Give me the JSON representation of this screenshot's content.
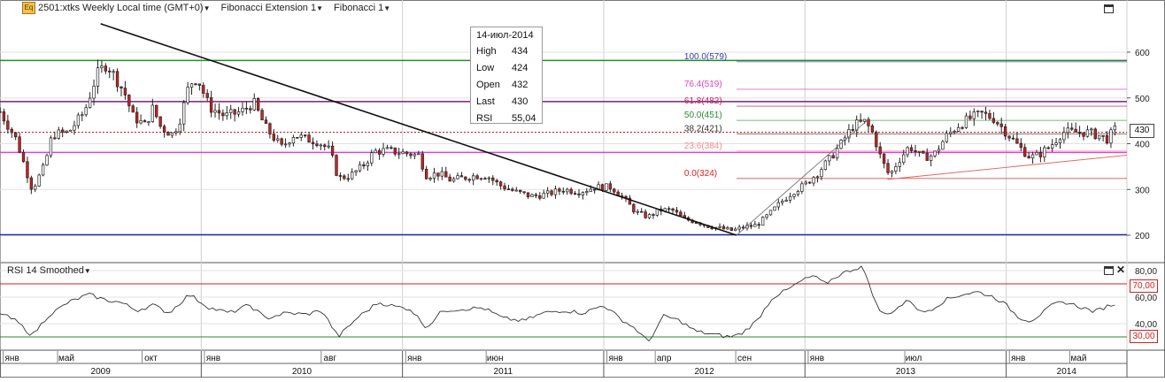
{
  "header": {
    "instrument_label": "2501:xtks Weekly Local time (GMT+0)",
    "fib_ext_label": "Fibonacci Extension 1",
    "fib_label": "Fibonacci 1",
    "logo_text": "Eq"
  },
  "tooltip": {
    "date": "14-июл-2014",
    "rows": [
      {
        "k": "High",
        "v": "434"
      },
      {
        "k": "Low",
        "v": "424"
      },
      {
        "k": "Open",
        "v": "432"
      },
      {
        "k": "Last",
        "v": "430"
      },
      {
        "k": "RSI",
        "v": "55,04"
      }
    ]
  },
  "price_tag": "430",
  "rsi_header": "RSI 14 Smoothed",
  "rsi_tags": {
    "upper": "70,00",
    "lower": "30,00"
  },
  "chart_data": {
    "type": "candlestick",
    "price_axis": {
      "min": 180,
      "max": 650,
      "ticks": [
        200,
        300,
        400,
        500,
        600
      ]
    },
    "rsi_axis": {
      "min": 20,
      "max": 85,
      "ticks": [
        "40,00",
        "60,00",
        "80,00"
      ],
      "tick_values": [
        40,
        60,
        80
      ]
    },
    "time_axis": {
      "months": [
        {
          "label": "янв",
          "t": 0.06
        },
        {
          "label": "май",
          "t": 0.33
        },
        {
          "label": "окт",
          "t": 0.75
        },
        {
          "label": "янв",
          "t": 1.06
        },
        {
          "label": "авг",
          "t": 1.64
        },
        {
          "label": "янв",
          "t": 2.06
        },
        {
          "label": "июн",
          "t": 2.46
        },
        {
          "label": "янв",
          "t": 3.06
        },
        {
          "label": "апр",
          "t": 3.3
        },
        {
          "label": "сен",
          "t": 3.7
        },
        {
          "label": "янв",
          "t": 4.06
        },
        {
          "label": "июл",
          "t": 4.54
        },
        {
          "label": "янв",
          "t": 5.06
        },
        {
          "label": "май",
          "t": 5.36
        }
      ],
      "years": [
        {
          "label": "2009",
          "t": 0.5
        },
        {
          "label": "2010",
          "t": 1.5
        },
        {
          "label": "2011",
          "t": 2.5
        },
        {
          "label": "2012",
          "t": 3.5
        },
        {
          "label": "2013",
          "t": 4.5
        },
        {
          "label": "2014",
          "t": 5.3
        }
      ],
      "year_starts": [
        0,
        1,
        2,
        3,
        4,
        5,
        5.6
      ]
    },
    "fibonacci_levels": [
      {
        "label": "100.0(579)",
        "value": 579,
        "color": "#3a3ab0"
      },
      {
        "label": "76.4(519)",
        "value": 519,
        "color": "#e040c0"
      },
      {
        "label": "61.8(482)",
        "value": 482,
        "color": "#c02060"
      },
      {
        "label": "50.0(451)",
        "value": 451,
        "color": "#2a8a2a"
      },
      {
        "label": "38.2(421)",
        "value": 421,
        "color": "#333333"
      },
      {
        "label": "23.6(384)",
        "value": 384,
        "color": "#ff8888"
      },
      {
        "label": "0.0(324)",
        "value": 324,
        "color": "#dd2222"
      }
    ],
    "horizontal_lines": [
      {
        "value": 582,
        "color": "#2a8a2a"
      },
      {
        "value": 492,
        "color": "#7a1f7a"
      },
      {
        "value": 381,
        "color": "#e040e0"
      },
      {
        "value": 201,
        "color": "#2222aa"
      }
    ],
    "dotted_line": {
      "value": 425,
      "color": "#cc2222"
    },
    "trendline": {
      "t1": 0.5,
      "v1": 662,
      "t2": 3.66,
      "v2": 200
    },
    "fib_ext_line": {
      "t1": 3.66,
      "v1": 200,
      "t2": 4.32,
      "v2": 455
    },
    "channel_line": {
      "t1": 4.41,
      "v1": 322,
      "t2": 5.6,
      "v2": 375
    },
    "anchors": [
      {
        "t": 0.0,
        "v": 470
      },
      {
        "t": 0.08,
        "v": 410
      },
      {
        "t": 0.12,
        "v": 355
      },
      {
        "t": 0.16,
        "v": 300
      },
      {
        "t": 0.22,
        "v": 350
      },
      {
        "t": 0.26,
        "v": 420
      },
      {
        "t": 0.34,
        "v": 425
      },
      {
        "t": 0.42,
        "v": 470
      },
      {
        "t": 0.48,
        "v": 550
      },
      {
        "t": 0.53,
        "v": 575
      },
      {
        "t": 0.58,
        "v": 540
      },
      {
        "t": 0.62,
        "v": 510
      },
      {
        "t": 0.66,
        "v": 460
      },
      {
        "t": 0.72,
        "v": 440
      },
      {
        "t": 0.76,
        "v": 478
      },
      {
        "t": 0.8,
        "v": 435
      },
      {
        "t": 0.86,
        "v": 420
      },
      {
        "t": 0.9,
        "v": 460
      },
      {
        "t": 0.94,
        "v": 530
      },
      {
        "t": 0.98,
        "v": 545
      },
      {
        "t": 1.04,
        "v": 480
      },
      {
        "t": 1.12,
        "v": 460
      },
      {
        "t": 1.2,
        "v": 470
      },
      {
        "t": 1.26,
        "v": 490
      },
      {
        "t": 1.32,
        "v": 435
      },
      {
        "t": 1.4,
        "v": 392
      },
      {
        "t": 1.46,
        "v": 420
      },
      {
        "t": 1.52,
        "v": 410
      },
      {
        "t": 1.58,
        "v": 405
      },
      {
        "t": 1.64,
        "v": 385
      },
      {
        "t": 1.68,
        "v": 325
      },
      {
        "t": 1.74,
        "v": 330
      },
      {
        "t": 1.8,
        "v": 350
      },
      {
        "t": 1.86,
        "v": 383
      },
      {
        "t": 1.92,
        "v": 385
      },
      {
        "t": 2.0,
        "v": 380
      },
      {
        "t": 2.08,
        "v": 375
      },
      {
        "t": 2.12,
        "v": 330
      },
      {
        "t": 2.18,
        "v": 335
      },
      {
        "t": 2.24,
        "v": 320
      },
      {
        "t": 2.3,
        "v": 325
      },
      {
        "t": 2.36,
        "v": 330
      },
      {
        "t": 2.42,
        "v": 330
      },
      {
        "t": 2.48,
        "v": 310
      },
      {
        "t": 2.56,
        "v": 295
      },
      {
        "t": 2.64,
        "v": 285
      },
      {
        "t": 2.72,
        "v": 290
      },
      {
        "t": 2.8,
        "v": 300
      },
      {
        "t": 2.88,
        "v": 295
      },
      {
        "t": 2.96,
        "v": 305
      },
      {
        "t": 3.04,
        "v": 305
      },
      {
        "t": 3.1,
        "v": 280
      },
      {
        "t": 3.16,
        "v": 250
      },
      {
        "t": 3.22,
        "v": 240
      },
      {
        "t": 3.28,
        "v": 255
      },
      {
        "t": 3.34,
        "v": 255
      },
      {
        "t": 3.4,
        "v": 235
      },
      {
        "t": 3.46,
        "v": 230
      },
      {
        "t": 3.52,
        "v": 220
      },
      {
        "t": 3.58,
        "v": 215
      },
      {
        "t": 3.64,
        "v": 210
      },
      {
        "t": 3.7,
        "v": 218
      },
      {
        "t": 3.76,
        "v": 222
      },
      {
        "t": 3.82,
        "v": 245
      },
      {
        "t": 3.88,
        "v": 272
      },
      {
        "t": 3.94,
        "v": 295
      },
      {
        "t": 4.0,
        "v": 310
      },
      {
        "t": 4.06,
        "v": 335
      },
      {
        "t": 4.12,
        "v": 365
      },
      {
        "t": 4.18,
        "v": 400
      },
      {
        "t": 4.24,
        "v": 440
      },
      {
        "t": 4.3,
        "v": 448
      },
      {
        "t": 4.34,
        "v": 420
      },
      {
        "t": 4.38,
        "v": 365
      },
      {
        "t": 4.42,
        "v": 330
      },
      {
        "t": 4.46,
        "v": 360
      },
      {
        "t": 4.52,
        "v": 395
      },
      {
        "t": 4.58,
        "v": 370
      },
      {
        "t": 4.64,
        "v": 375
      },
      {
        "t": 4.7,
        "v": 415
      },
      {
        "t": 4.76,
        "v": 440
      },
      {
        "t": 4.82,
        "v": 455
      },
      {
        "t": 4.88,
        "v": 465
      },
      {
        "t": 4.94,
        "v": 455
      },
      {
        "t": 5.0,
        "v": 425
      },
      {
        "t": 5.06,
        "v": 395
      },
      {
        "t": 5.12,
        "v": 370
      },
      {
        "t": 5.16,
        "v": 375
      },
      {
        "t": 5.22,
        "v": 395
      },
      {
        "t": 5.28,
        "v": 425
      },
      {
        "t": 5.34,
        "v": 425
      },
      {
        "t": 5.4,
        "v": 425
      },
      {
        "t": 5.46,
        "v": 418
      },
      {
        "t": 5.5,
        "v": 410
      },
      {
        "t": 5.54,
        "v": 430
      }
    ],
    "rsi_anchors": [
      {
        "t": 0.0,
        "v": 48
      },
      {
        "t": 0.08,
        "v": 42
      },
      {
        "t": 0.16,
        "v": 31
      },
      {
        "t": 0.24,
        "v": 46
      },
      {
        "t": 0.34,
        "v": 56
      },
      {
        "t": 0.44,
        "v": 62
      },
      {
        "t": 0.52,
        "v": 58
      },
      {
        "t": 0.6,
        "v": 56
      },
      {
        "t": 0.68,
        "v": 50
      },
      {
        "t": 0.76,
        "v": 54
      },
      {
        "t": 0.84,
        "v": 48
      },
      {
        "t": 0.94,
        "v": 62
      },
      {
        "t": 1.04,
        "v": 52
      },
      {
        "t": 1.14,
        "v": 48
      },
      {
        "t": 1.24,
        "v": 54
      },
      {
        "t": 1.32,
        "v": 44
      },
      {
        "t": 1.42,
        "v": 48
      },
      {
        "t": 1.52,
        "v": 47
      },
      {
        "t": 1.6,
        "v": 50
      },
      {
        "t": 1.68,
        "v": 30
      },
      {
        "t": 1.78,
        "v": 45
      },
      {
        "t": 1.88,
        "v": 56
      },
      {
        "t": 1.96,
        "v": 53
      },
      {
        "t": 2.04,
        "v": 51
      },
      {
        "t": 2.12,
        "v": 37
      },
      {
        "t": 2.2,
        "v": 50
      },
      {
        "t": 2.3,
        "v": 51
      },
      {
        "t": 2.4,
        "v": 52
      },
      {
        "t": 2.5,
        "v": 44
      },
      {
        "t": 2.6,
        "v": 42
      },
      {
        "t": 2.7,
        "v": 48
      },
      {
        "t": 2.8,
        "v": 50
      },
      {
        "t": 2.9,
        "v": 48
      },
      {
        "t": 3.0,
        "v": 54
      },
      {
        "t": 3.08,
        "v": 44
      },
      {
        "t": 3.16,
        "v": 36
      },
      {
        "t": 3.22,
        "v": 26
      },
      {
        "t": 3.3,
        "v": 46
      },
      {
        "t": 3.38,
        "v": 42
      },
      {
        "t": 3.46,
        "v": 34
      },
      {
        "t": 3.54,
        "v": 32
      },
      {
        "t": 3.62,
        "v": 30
      },
      {
        "t": 3.68,
        "v": 32
      },
      {
        "t": 3.76,
        "v": 42
      },
      {
        "t": 3.84,
        "v": 60
      },
      {
        "t": 3.92,
        "v": 66
      },
      {
        "t": 3.98,
        "v": 72
      },
      {
        "t": 4.04,
        "v": 76
      },
      {
        "t": 4.1,
        "v": 70
      },
      {
        "t": 4.16,
        "v": 76
      },
      {
        "t": 4.22,
        "v": 80
      },
      {
        "t": 4.28,
        "v": 83
      },
      {
        "t": 4.32,
        "v": 70
      },
      {
        "t": 4.36,
        "v": 52
      },
      {
        "t": 4.4,
        "v": 46
      },
      {
        "t": 4.46,
        "v": 52
      },
      {
        "t": 4.52,
        "v": 58
      },
      {
        "t": 4.58,
        "v": 48
      },
      {
        "t": 4.64,
        "v": 52
      },
      {
        "t": 4.7,
        "v": 58
      },
      {
        "t": 4.78,
        "v": 62
      },
      {
        "t": 4.86,
        "v": 64
      },
      {
        "t": 4.94,
        "v": 60
      },
      {
        "t": 5.0,
        "v": 54
      },
      {
        "t": 5.06,
        "v": 45
      },
      {
        "t": 5.12,
        "v": 42
      },
      {
        "t": 5.18,
        "v": 48
      },
      {
        "t": 5.24,
        "v": 55
      },
      {
        "t": 5.3,
        "v": 56
      },
      {
        "t": 5.38,
        "v": 52
      },
      {
        "t": 5.44,
        "v": 49
      },
      {
        "t": 5.5,
        "v": 53
      },
      {
        "t": 5.54,
        "v": 55
      }
    ]
  }
}
